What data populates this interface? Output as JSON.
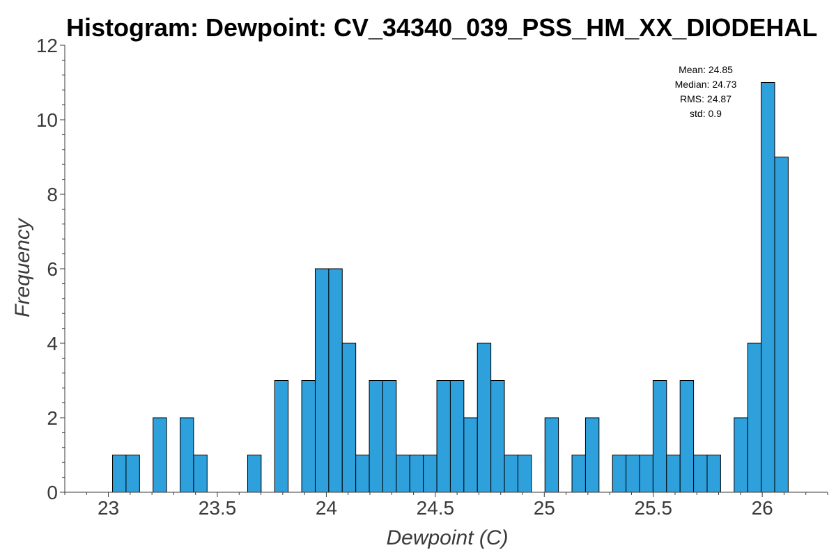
{
  "chart_data": {
    "type": "bar",
    "title": "Histogram: Dewpoint: CV_34340_039_PSS_HM_XX_DIODEHAL",
    "xlabel": "Dewpoint (C)",
    "ylabel": "Frequency",
    "xlim": [
      22.8,
      26.3
    ],
    "ylim": [
      0,
      12
    ],
    "bin_width": 0.062,
    "x_ticks": [
      23,
      23.5,
      24,
      24.5,
      25,
      25.5,
      26
    ],
    "x_tick_labels": [
      "23",
      "23.5",
      "24",
      "24.5",
      "25",
      "25.5",
      "26"
    ],
    "y_ticks": [
      0,
      2,
      4,
      6,
      8,
      10,
      12
    ],
    "y_tick_labels": [
      "0",
      "2",
      "4",
      "6",
      "8",
      "10",
      "12"
    ],
    "bars": [
      {
        "x0": 23.019,
        "count": 1
      },
      {
        "x0": 23.081,
        "count": 1
      },
      {
        "x0": 23.205,
        "count": 2
      },
      {
        "x0": 23.329,
        "count": 2
      },
      {
        "x0": 23.391,
        "count": 1
      },
      {
        "x0": 23.639,
        "count": 1
      },
      {
        "x0": 23.763,
        "count": 3
      },
      {
        "x0": 23.887,
        "count": 3
      },
      {
        "x0": 23.949,
        "count": 6
      },
      {
        "x0": 24.011,
        "count": 6
      },
      {
        "x0": 24.073,
        "count": 4
      },
      {
        "x0": 24.135,
        "count": 1
      },
      {
        "x0": 24.197,
        "count": 3
      },
      {
        "x0": 24.259,
        "count": 3
      },
      {
        "x0": 24.321,
        "count": 1
      },
      {
        "x0": 24.383,
        "count": 1
      },
      {
        "x0": 24.445,
        "count": 1
      },
      {
        "x0": 24.507,
        "count": 3
      },
      {
        "x0": 24.569,
        "count": 3
      },
      {
        "x0": 24.631,
        "count": 2
      },
      {
        "x0": 24.693,
        "count": 4
      },
      {
        "x0": 24.755,
        "count": 3
      },
      {
        "x0": 24.817,
        "count": 1
      },
      {
        "x0": 24.879,
        "count": 1
      },
      {
        "x0": 25.003,
        "count": 2
      },
      {
        "x0": 25.127,
        "count": 1
      },
      {
        "x0": 25.189,
        "count": 2
      },
      {
        "x0": 25.313,
        "count": 1
      },
      {
        "x0": 25.375,
        "count": 1
      },
      {
        "x0": 25.437,
        "count": 1
      },
      {
        "x0": 25.499,
        "count": 3
      },
      {
        "x0": 25.561,
        "count": 1
      },
      {
        "x0": 25.623,
        "count": 3
      },
      {
        "x0": 25.685,
        "count": 1
      },
      {
        "x0": 25.747,
        "count": 1
      },
      {
        "x0": 25.871,
        "count": 2
      },
      {
        "x0": 25.933,
        "count": 4
      },
      {
        "x0": 25.995,
        "count": 11
      },
      {
        "x0": 26.057,
        "count": 9
      }
    ],
    "stats_box": {
      "mean": "Mean: 24.85",
      "median": "Median: 24.73",
      "rms": "RMS: 24.87",
      "std": "std: 0.9"
    },
    "grid": false,
    "colors": {
      "bar_fill": "#2ea0dc",
      "bar_edge": "#000000",
      "axis": "#3a3a3a"
    }
  }
}
